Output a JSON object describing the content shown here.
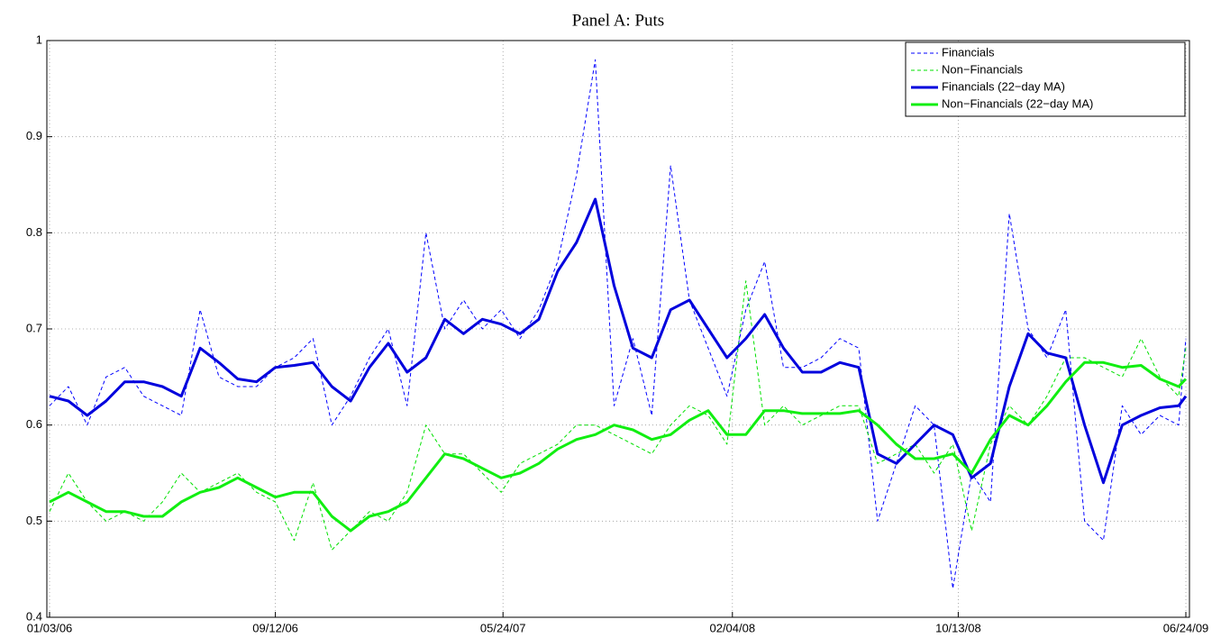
{
  "chart_data": {
    "type": "line",
    "title": "Panel A: Puts",
    "x": [
      "01/03/06",
      "01/24/06",
      "02/14/06",
      "03/07/06",
      "03/28/06",
      "04/18/06",
      "05/09/06",
      "05/30/06",
      "06/20/06",
      "07/11/06",
      "08/01/06",
      "08/22/06",
      "09/12/06",
      "10/03/06",
      "10/24/06",
      "11/14/06",
      "12/05/06",
      "12/26/06",
      "01/16/07",
      "02/06/07",
      "02/27/07",
      "03/20/07",
      "04/10/07",
      "05/01/07",
      "05/22/07",
      "06/12/07",
      "07/03/07",
      "07/24/07",
      "08/14/07",
      "09/04/07",
      "09/25/07",
      "10/16/07",
      "11/06/07",
      "11/27/07",
      "12/18/07",
      "01/08/08",
      "01/29/08",
      "02/19/08",
      "03/11/08",
      "04/01/08",
      "04/22/08",
      "05/13/08",
      "06/03/08",
      "06/24/08",
      "07/15/08",
      "08/05/08",
      "08/26/08",
      "09/16/08",
      "10/07/08",
      "10/28/08",
      "11/18/08",
      "12/09/08",
      "12/30/08",
      "01/20/09",
      "02/10/09",
      "03/03/09",
      "03/24/09",
      "04/14/09",
      "05/05/09",
      "05/26/09",
      "06/16/09",
      "06/24/09"
    ],
    "series": [
      {
        "name": "Financials",
        "color": "#0000ff",
        "dashed": true,
        "width": 1,
        "values": [
          0.62,
          0.64,
          0.6,
          0.65,
          0.66,
          0.63,
          0.62,
          0.61,
          0.72,
          0.65,
          0.64,
          0.64,
          0.66,
          0.67,
          0.69,
          0.6,
          0.63,
          0.67,
          0.7,
          0.62,
          0.8,
          0.7,
          0.73,
          0.7,
          0.72,
          0.69,
          0.72,
          0.77,
          0.86,
          0.98,
          0.62,
          0.69,
          0.61,
          0.87,
          0.73,
          0.68,
          0.63,
          0.72,
          0.77,
          0.66,
          0.66,
          0.67,
          0.69,
          0.68,
          0.5,
          0.56,
          0.62,
          0.6,
          0.43,
          0.55,
          0.52,
          0.82,
          0.7,
          0.67,
          0.72,
          0.5,
          0.48,
          0.62,
          0.59,
          0.61,
          0.6,
          0.69
        ]
      },
      {
        "name": "Non−Financials",
        "color": "#00e000",
        "dashed": true,
        "width": 1,
        "values": [
          0.51,
          0.55,
          0.52,
          0.5,
          0.51,
          0.5,
          0.52,
          0.55,
          0.53,
          0.54,
          0.55,
          0.53,
          0.52,
          0.48,
          0.54,
          0.47,
          0.49,
          0.51,
          0.5,
          0.53,
          0.6,
          0.57,
          0.57,
          0.55,
          0.53,
          0.56,
          0.57,
          0.58,
          0.6,
          0.6,
          0.59,
          0.58,
          0.57,
          0.6,
          0.62,
          0.61,
          0.58,
          0.75,
          0.6,
          0.62,
          0.6,
          0.61,
          0.62,
          0.62,
          0.56,
          0.57,
          0.58,
          0.55,
          0.58,
          0.49,
          0.58,
          0.62,
          0.6,
          0.63,
          0.67,
          0.67,
          0.66,
          0.65,
          0.69,
          0.65,
          0.63,
          0.68
        ]
      },
      {
        "name": "Financials (22−day MA)",
        "color": "#0000dd",
        "dashed": false,
        "width": 3,
        "values": [
          0.63,
          0.625,
          0.61,
          0.625,
          0.645,
          0.645,
          0.64,
          0.63,
          0.68,
          0.665,
          0.648,
          0.645,
          0.66,
          0.662,
          0.665,
          0.64,
          0.625,
          0.66,
          0.685,
          0.655,
          0.67,
          0.71,
          0.695,
          0.71,
          0.705,
          0.695,
          0.71,
          0.76,
          0.79,
          0.835,
          0.745,
          0.68,
          0.67,
          0.72,
          0.73,
          0.7,
          0.67,
          0.69,
          0.715,
          0.68,
          0.655,
          0.655,
          0.665,
          0.66,
          0.57,
          0.56,
          0.58,
          0.6,
          0.59,
          0.545,
          0.56,
          0.64,
          0.695,
          0.675,
          0.67,
          0.6,
          0.54,
          0.6,
          0.61,
          0.618,
          0.62,
          0.63
        ]
      },
      {
        "name": "Non−Financials (22−day MA)",
        "color": "#11ee11",
        "dashed": false,
        "width": 3,
        "values": [
          0.52,
          0.53,
          0.52,
          0.51,
          0.51,
          0.505,
          0.505,
          0.52,
          0.53,
          0.535,
          0.545,
          0.535,
          0.525,
          0.53,
          0.53,
          0.505,
          0.49,
          0.505,
          0.51,
          0.52,
          0.545,
          0.57,
          0.565,
          0.555,
          0.545,
          0.55,
          0.56,
          0.575,
          0.585,
          0.59,
          0.6,
          0.595,
          0.585,
          0.59,
          0.605,
          0.615,
          0.59,
          0.59,
          0.615,
          0.615,
          0.612,
          0.612,
          0.612,
          0.615,
          0.6,
          0.58,
          0.565,
          0.565,
          0.57,
          0.55,
          0.585,
          0.61,
          0.6,
          0.62,
          0.645,
          0.665,
          0.665,
          0.66,
          0.662,
          0.648,
          0.64,
          0.648
        ]
      }
    ],
    "xticks": [
      "01/03/06",
      "09/12/06",
      "05/24/07",
      "02/04/08",
      "10/13/08",
      "06/24/09"
    ],
    "ylim": [
      0.4,
      1
    ],
    "yticks": [
      0.4,
      0.5,
      0.6,
      0.7,
      0.8,
      0.9,
      1
    ],
    "grid": true,
    "legend": "upper right"
  }
}
